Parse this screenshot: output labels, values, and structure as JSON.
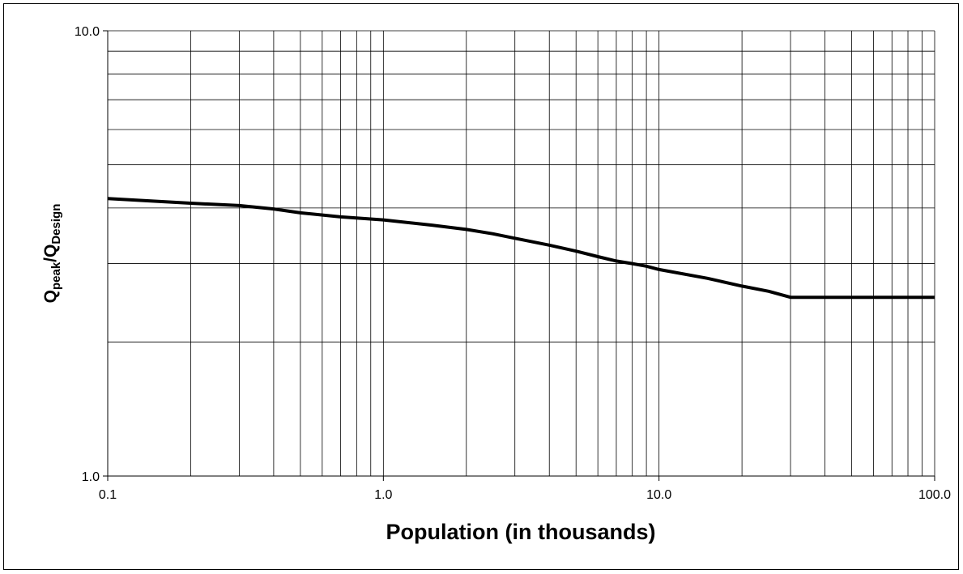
{
  "chart_data": {
    "type": "line",
    "title": "",
    "xlabel": "Population (in thousands)",
    "ylabel": {
      "main": "Q",
      "sub1": "peak",
      "sep": "/Q",
      "sub2": "Design"
    },
    "x_scale": "log",
    "y_scale": "log",
    "xlim": [
      0.1,
      100
    ],
    "ylim": [
      1.0,
      10.0
    ],
    "x_tick_labels": [
      "0.1",
      "1.0",
      "10.0",
      "100.0"
    ],
    "y_tick_labels": [
      "1.0",
      "10.0"
    ],
    "grid": true,
    "series": [
      {
        "color": "#000000",
        "x": [
          0.1,
          0.2,
          0.3,
          0.4,
          0.5,
          0.7,
          1.0,
          1.5,
          2.0,
          2.5,
          3.0,
          4.0,
          5.0,
          6.0,
          7.0,
          8.0,
          9.0,
          10.0,
          15.0,
          20.0,
          25.0,
          30.0,
          50.0,
          100.0
        ],
        "y": [
          4.2,
          4.1,
          4.05,
          3.98,
          3.9,
          3.82,
          3.76,
          3.66,
          3.58,
          3.5,
          3.42,
          3.3,
          3.2,
          3.11,
          3.04,
          3.0,
          2.96,
          2.91,
          2.78,
          2.67,
          2.6,
          2.52,
          2.52,
          2.52
        ]
      }
    ]
  }
}
